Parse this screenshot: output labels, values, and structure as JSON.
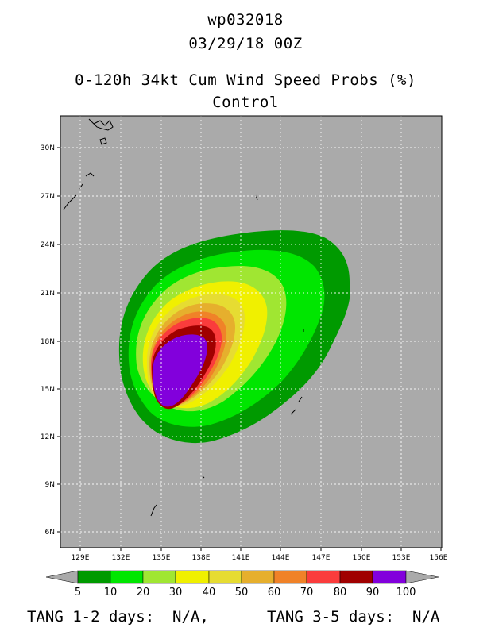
{
  "header": {
    "storm_id": "wp032018",
    "datetime": "03/29/18 00Z",
    "product": "0-120h 34kt Cum Wind Speed Probs (%)",
    "member": "Control"
  },
  "map": {
    "lat_range": [
      4.5,
      32.0
    ],
    "lon_range": [
      127.5,
      156.0
    ],
    "lat_ticks": [
      "6N",
      "9N",
      "12N",
      "15N",
      "18N",
      "21N",
      "24N",
      "27N",
      "30N"
    ],
    "lon_ticks": [
      "129E",
      "132E",
      "135E",
      "138E",
      "141E",
      "144E",
      "147E",
      "150E",
      "153E",
      "156E"
    ],
    "background_color": "#aaaaaa"
  },
  "colorbar": {
    "labels": [
      "5",
      "10",
      "20",
      "30",
      "40",
      "50",
      "60",
      "70",
      "80",
      "90",
      "100"
    ],
    "colors": [
      "#009a00",
      "#00e600",
      "#a0e632",
      "#f0f000",
      "#e6dc32",
      "#e6af2d",
      "#f08228",
      "#fa3c3c",
      "#a00000",
      "#8200dc"
    ]
  },
  "footer": {
    "tang_12": "TANG 1-2 days:  N/A,",
    "tang_35": "TANG 3-5 days:  N/A"
  }
}
